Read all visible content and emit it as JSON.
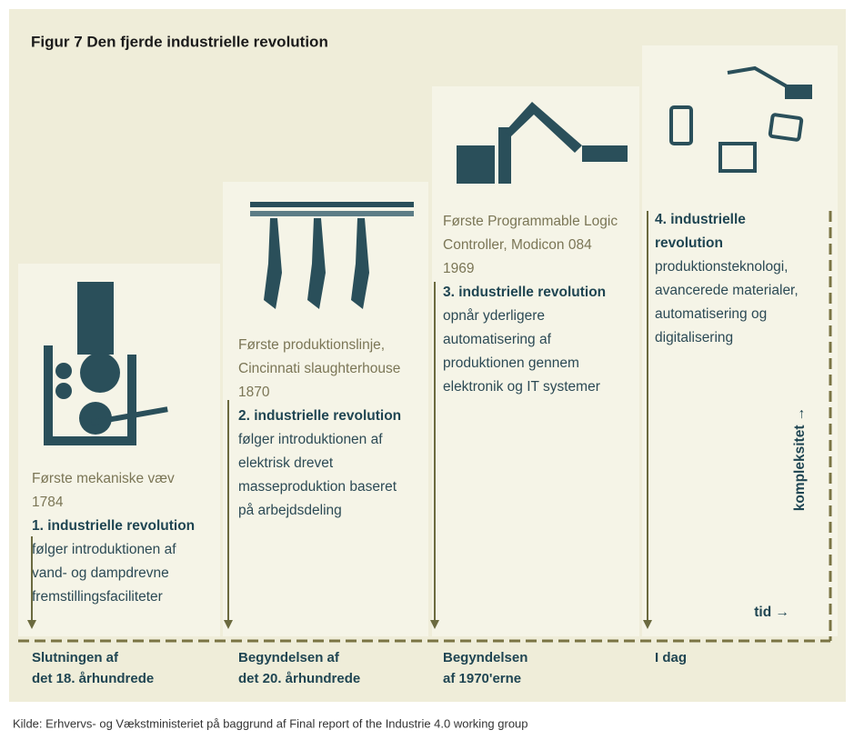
{
  "title": "Figur 7 Den fjerde industrielle revolution",
  "stages": [
    {
      "caption": [
        "Første mekaniske væv",
        "1784"
      ],
      "heading": [
        "1. industrielle revolution"
      ],
      "body": [
        "følger introduktionen af",
        "vand- og dampdrevne",
        "fremstillingsfaciliteter"
      ],
      "period": [
        "Slutningen af",
        "det 18. århundrede"
      ]
    },
    {
      "caption": [
        "Første produktionslinje,",
        "Cincinnati slaughterhouse",
        "1870"
      ],
      "heading": [
        "2. industrielle revolution"
      ],
      "body": [
        "følger introduktionen af",
        "elektrisk drevet",
        "masseproduktion baseret",
        "på arbejdsdeling"
      ],
      "period": [
        "Begyndelsen af",
        "det 20. århundrede"
      ]
    },
    {
      "caption": [
        "Første Programmable Logic",
        "Controller, Modicon 084",
        "1969"
      ],
      "heading": [
        "3. industrielle revolution"
      ],
      "body": [
        "opnår yderligere",
        "automatisering af",
        "produktionen gennem",
        "elektronik og IT systemer"
      ],
      "period": [
        "Begyndelsen",
        "af 1970'erne"
      ]
    },
    {
      "heading": [
        "4. industrielle",
        "revolution"
      ],
      "body": [
        "produktionsteknologi,",
        "avancerede materialer,",
        "automatisering og",
        "digitalisering"
      ],
      "period": [
        "I dag"
      ]
    }
  ],
  "axis": {
    "y_label": "kompleksitet →",
    "x_label": "tid →"
  },
  "source": "Kilde: Erhvervs- og Vækstministeriet på baggrund af Final report of the Industrie 4.0 working group"
}
